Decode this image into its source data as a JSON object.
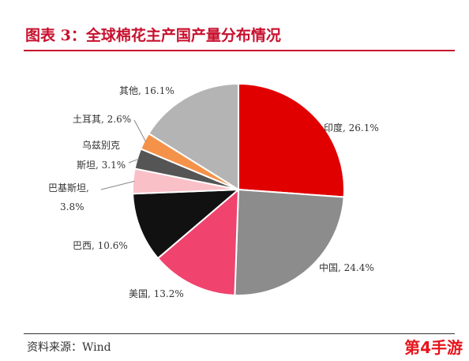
{
  "title": "图表 3：全球棉花主产国产量分布情况",
  "source": "资料来源：Wind",
  "watermark": "第4手游",
  "chart_data": {
    "type": "pie",
    "slices": [
      {
        "name": "印度",
        "value": 26.1,
        "label": "印度, 26.1%",
        "color": "#e00000"
      },
      {
        "name": "中国",
        "value": 24.4,
        "label": "中国, 24.4%",
        "color": "#8c8c8c"
      },
      {
        "name": "美国",
        "value": 13.2,
        "label": "美国, 13.2%",
        "color": "#f0436e"
      },
      {
        "name": "巴西",
        "value": 10.6,
        "label": "巴西, 10.6%",
        "color": "#111111"
      },
      {
        "name": "巴基斯坦",
        "value": 3.8,
        "label_line1": "巴基斯坦,",
        "label_line2": "3.8%",
        "color": "#f9c0c8"
      },
      {
        "name": "乌兹别克斯坦",
        "value": 3.1,
        "label_line1": "乌兹别克",
        "label_line2": "斯坦, 3.1%",
        "color": "#555555"
      },
      {
        "name": "土耳其",
        "value": 2.6,
        "label": "土耳其, 2.6%",
        "color": "#f5924a"
      },
      {
        "name": "其他",
        "value": 16.1,
        "label": "其他, 16.1%",
        "color": "#b4b4b4"
      }
    ]
  }
}
